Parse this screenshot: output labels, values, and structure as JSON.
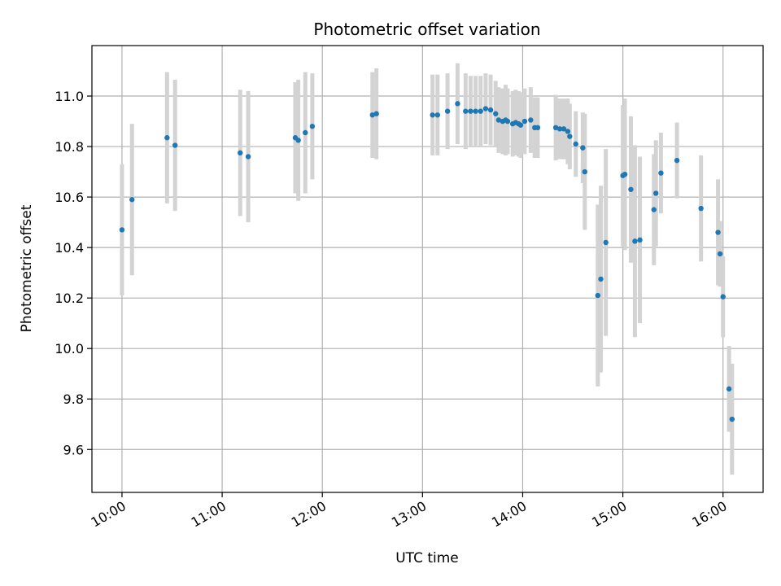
{
  "chart_data": {
    "type": "scatter",
    "title": "Photometric offset variation",
    "xlabel": "UTC time",
    "ylabel": "Photometric offset",
    "x_unit": "hours UTC",
    "xlim": [
      9.7,
      16.4
    ],
    "ylim": [
      9.43,
      11.2
    ],
    "xticks": [
      10,
      11,
      12,
      13,
      14,
      15,
      16
    ],
    "xtick_labels": [
      "10:00",
      "11:00",
      "12:00",
      "13:00",
      "14:00",
      "15:00",
      "16:00"
    ],
    "yticks": [
      9.6,
      9.8,
      10.0,
      10.2,
      10.4,
      10.6,
      10.8,
      11.0
    ],
    "ytick_labels": [
      "9.6",
      "9.8",
      "10.0",
      "10.2",
      "10.4",
      "10.6",
      "10.8",
      "11.0"
    ],
    "grid": true,
    "colors": {
      "points": "#1f77b4",
      "errorbars": "#d3d3d3",
      "grid": "#b0b0b0"
    },
    "x": [
      10.0,
      10.1,
      10.45,
      10.53,
      11.18,
      11.26,
      11.73,
      11.76,
      11.83,
      11.9,
      12.5,
      12.54,
      13.1,
      13.15,
      13.25,
      13.35,
      13.43,
      13.48,
      13.53,
      13.58,
      13.63,
      13.68,
      13.73,
      13.76,
      13.8,
      13.83,
      13.85,
      13.9,
      13.93,
      13.96,
      13.98,
      14.02,
      14.08,
      14.12,
      14.15,
      14.33,
      14.37,
      14.41,
      14.45,
      14.47,
      14.53,
      14.6,
      14.62,
      14.75,
      14.78,
      14.83,
      15.0,
      15.02,
      15.08,
      15.12,
      15.17,
      15.31,
      15.33,
      15.38,
      15.54,
      15.78,
      15.95,
      15.97,
      16.0,
      16.06,
      16.09
    ],
    "y": [
      10.47,
      10.59,
      10.835,
      10.805,
      10.775,
      10.76,
      10.835,
      10.825,
      10.855,
      10.88,
      10.925,
      10.93,
      10.925,
      10.925,
      10.94,
      10.97,
      10.94,
      10.94,
      10.94,
      10.94,
      10.95,
      10.945,
      10.93,
      10.905,
      10.9,
      10.905,
      10.9,
      10.89,
      10.895,
      10.89,
      10.885,
      10.9,
      10.905,
      10.875,
      10.875,
      10.875,
      10.87,
      10.87,
      10.86,
      10.84,
      10.81,
      10.795,
      10.7,
      10.21,
      10.275,
      10.42,
      10.685,
      10.69,
      10.63,
      10.425,
      10.43,
      10.55,
      10.615,
      10.695,
      10.745,
      10.555,
      10.46,
      10.375,
      10.205,
      9.84,
      9.72
    ],
    "err": [
      0.26,
      0.3,
      0.26,
      0.26,
      0.25,
      0.26,
      0.22,
      0.24,
      0.24,
      0.21,
      0.17,
      0.18,
      0.16,
      0.16,
      0.15,
      0.16,
      0.15,
      0.14,
      0.14,
      0.14,
      0.14,
      0.14,
      0.13,
      0.13,
      0.13,
      0.14,
      0.13,
      0.13,
      0.13,
      0.13,
      0.13,
      0.13,
      0.13,
      0.12,
      0.12,
      0.13,
      0.12,
      0.12,
      0.13,
      0.13,
      0.13,
      0.14,
      0.23,
      0.36,
      0.37,
      0.37,
      0.28,
      0.3,
      0.29,
      0.38,
      0.33,
      0.22,
      0.21,
      0.16,
      0.15,
      0.21,
      0.21,
      0.13,
      0.16,
      0.17,
      0.22
    ]
  }
}
